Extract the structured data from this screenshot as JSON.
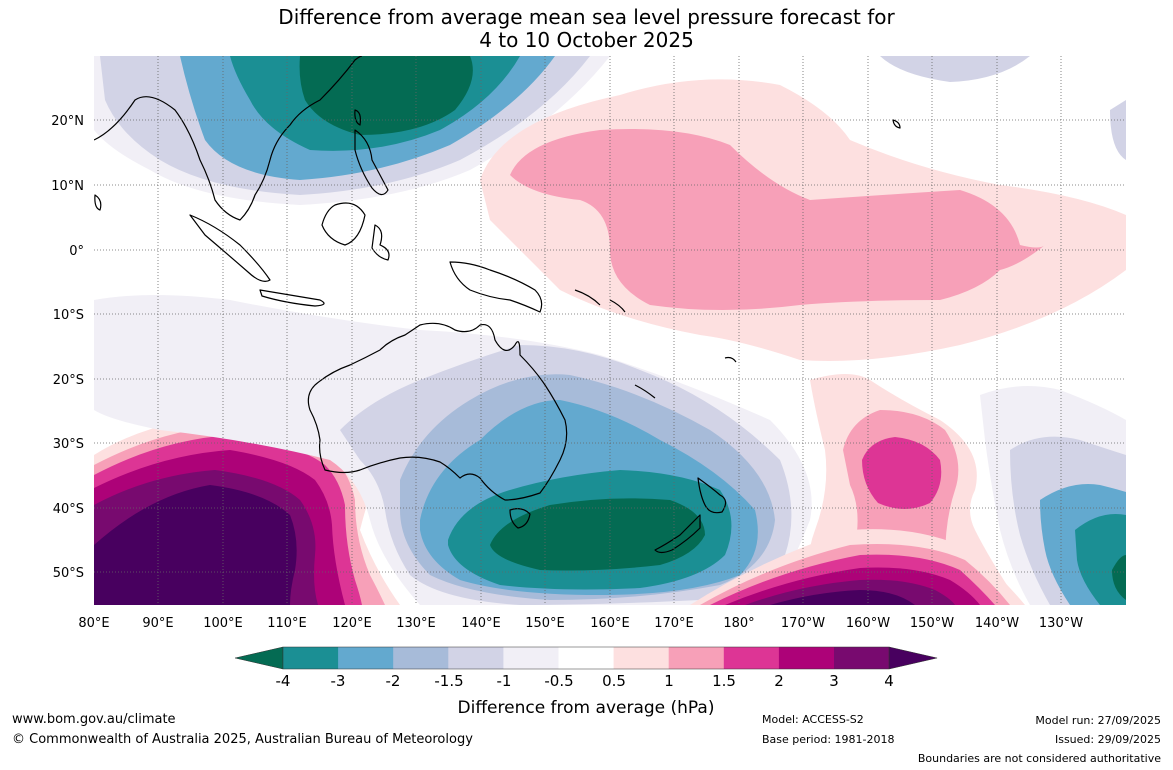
{
  "title": {
    "line1": "Difference from average mean sea level pressure forecast for",
    "line2": "4 to 10 October 2025"
  },
  "map": {
    "lat_labels": [
      "20°N",
      "10°N",
      "0°",
      "10°S",
      "20°S",
      "30°S",
      "40°S",
      "50°S"
    ],
    "lon_labels": [
      "80°E",
      "90°E",
      "100°E",
      "110°E",
      "120°E",
      "130°E",
      "140°E",
      "150°E",
      "160°E",
      "170°E",
      "180°",
      "170°W",
      "160°W",
      "150°W",
      "140°W",
      "130°W"
    ]
  },
  "legend": {
    "title": "Difference from average (hPa)",
    "ticks": [
      "-4",
      "-3",
      "-2",
      "-1.5",
      "-1",
      "-0.5",
      "0.5",
      "1",
      "1.5",
      "2",
      "3",
      "4"
    ],
    "colors": [
      "#046b53",
      "#1b8f94",
      "#63a9cf",
      "#a7bbd9",
      "#d2d3e6",
      "#f1eff6",
      "#ffffff",
      "#fde0e0",
      "#f7a0b8",
      "#dd3595",
      "#ad0278",
      "#780a6f",
      "#48005f"
    ]
  },
  "footer": {
    "website": "www.bom.gov.au/climate",
    "copyright": "© Commonwealth of Australia 2025, Australian Bureau of Meteorology",
    "model": "Model: ACCESS-S2",
    "base_period": "Base period: 1981-2018",
    "model_run": "Model run: 27/09/2025",
    "issued": "Issued: 29/09/2025",
    "disclaimer": "Boundaries are not considered authoritative"
  }
}
